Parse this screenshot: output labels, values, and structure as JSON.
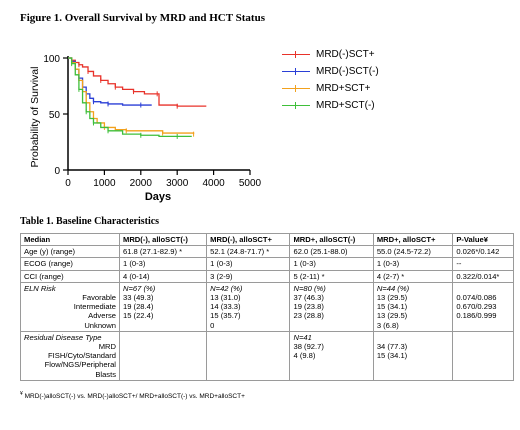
{
  "figure": {
    "title": "Figure 1. Overall Survival by MRD and HCT Status",
    "y_axis_label": "Probability of Survival",
    "x_axis_label": "Days",
    "y_ticks": [
      "0",
      "50",
      "100"
    ],
    "x_ticks": [
      "0",
      "1000",
      "2000",
      "3000",
      "4000",
      "5000"
    ]
  },
  "chart_data": {
    "type": "line",
    "title": "Figure 1. Overall Survival by MRD and HCT Status",
    "xlabel": "Days",
    "ylabel": "Probability of Survival",
    "xlim": [
      0,
      5000
    ],
    "ylim": [
      0,
      100
    ],
    "grid": false,
    "legend_position": "right",
    "series": [
      {
        "name": "MRD(-)SCT+",
        "color": "#e8322a",
        "x": [
          0,
          100,
          200,
          300,
          400,
          550,
          700,
          900,
          1100,
          1300,
          1500,
          1800,
          2100,
          2450,
          2500,
          3000,
          3800
        ],
        "y": [
          100,
          98,
          96,
          94,
          92,
          88,
          84,
          80,
          77,
          74,
          72,
          70,
          68,
          68,
          58,
          57,
          57
        ]
      },
      {
        "name": "MRD(-)SCT(-)",
        "color": "#2a3fd6",
        "x": [
          0,
          100,
          200,
          300,
          400,
          500,
          600,
          700,
          900,
          1100,
          1500,
          2000,
          2300
        ],
        "y": [
          100,
          97,
          90,
          82,
          74,
          68,
          64,
          61,
          60,
          59,
          58,
          58,
          58
        ]
      },
      {
        "name": "MRD+SCT+",
        "color": "#f2a11d",
        "x": [
          0,
          100,
          200,
          300,
          400,
          500,
          600,
          700,
          800,
          1000,
          1300,
          1600,
          2000,
          2600,
          3000,
          3450
        ],
        "y": [
          100,
          96,
          90,
          80,
          70,
          60,
          52,
          46,
          42,
          38,
          36,
          35,
          35,
          33,
          33,
          32
        ]
      },
      {
        "name": "MRD+SCT(-)",
        "color": "#3fbf3a",
        "x": [
          0,
          100,
          200,
          300,
          400,
          500,
          600,
          700,
          900,
          1100,
          1500,
          2000,
          2500,
          3000,
          3400
        ],
        "y": [
          100,
          95,
          85,
          72,
          60,
          52,
          46,
          42,
          38,
          35,
          32,
          31,
          30,
          30,
          30
        ]
      }
    ]
  },
  "table": {
    "title": "Table 1. Baseline Characteristics",
    "headers": [
      "Median",
      "MRD(-), alloSCT(-)",
      "MRD(-), alloSCT+",
      "MRD+, alloSCT(-)",
      "MRD+, alloSCT+",
      "P-Value¥"
    ],
    "rows": {
      "age": [
        "Age (y) (range)",
        "61.8 (27.1-82.9) *",
        "52.1 (24.8-71.7) *",
        "62.0 (25.1-88.0)",
        "55.0 (24.5-72.2)",
        "0.026*/0.142"
      ],
      "ecog": [
        "ECOG (range)",
        "1 (0-3)",
        "1 (0-3)",
        "1 (0-3)",
        "1 (0-3)",
        "--"
      ],
      "cci": [
        "CCI (range)",
        "4 (0-14)",
        "3 (2-9)",
        "5 (2-11) *",
        "4 (2-7) *",
        "0.322/0.014*"
      ]
    },
    "eln": {
      "label": "ELN Risk",
      "sublabels": [
        "Favorable",
        "Intermediate",
        "Adverse",
        "Unknown"
      ],
      "cols": [
        [
          "N=67 (%)",
          "33 (49.3)",
          "19 (28.4)",
          "15 (22.4)"
        ],
        [
          "N=42 (%)",
          "13 (31.0)",
          "14 (33.3)",
          "15 (35.7)",
          "0"
        ],
        [
          "N=80 (%)",
          "37 (46.3)",
          "19 (23.8)",
          "23 (28.8)"
        ],
        [
          "N=44 (%)",
          "13 (29.5)",
          "15 (34.1)",
          "13 (29.5)",
          "3 (6.8)"
        ]
      ],
      "pvalues": [
        "0.074/0.086",
        "0.670/0.293",
        "0.186/0.999"
      ]
    },
    "residual": {
      "label": "Residual Disease Type",
      "sublabels": [
        "MRD",
        "FISH/Cyto/Standard",
        "Flow/NGS/Peripheral",
        "Blasts"
      ],
      "cols": [
        [],
        [],
        [
          "N=41",
          "38 (92.7)",
          "4 (9.8)"
        ],
        [
          "",
          "34 (77.3)",
          "15 (34.1)"
        ]
      ]
    }
  },
  "footnote": {
    "marker": "¥",
    "text": " MRD(-)alloSCT(-) vs. MRD(-)alloSCT+/ MRD+alloSCT(-) vs. MRD+alloSCT+"
  }
}
